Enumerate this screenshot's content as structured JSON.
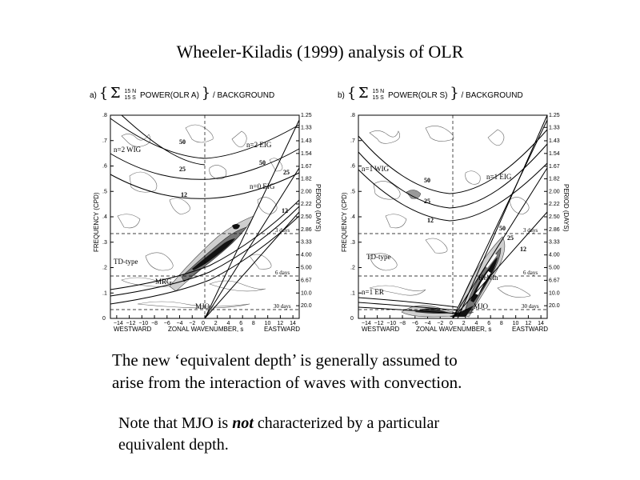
{
  "slide": {
    "title": "Wheeler-Kiladis (1999) analysis of OLR",
    "text1_line1": "The new ‘equivalent depth’ is generally assumed to",
    "text1_line2": "arise from the interaction of waves with convection.",
    "text2_pre": "Note that MJO is ",
    "text2_em": "not",
    "text2_post": " characterized by a particular",
    "text2_line2": "equivalent depth."
  },
  "panels": [
    {
      "id": "a",
      "letter": "a)",
      "sum_top": "15 N",
      "sum_bottom": "15 S",
      "power_label": "POWER(OLR A)",
      "denominator": "/ BACKGROUND",
      "ylabel": "FREQUENCY (CPD)",
      "y2label": "PERIOD (DAYS)",
      "xlabel": "ZONAL WAVENUMBER, s",
      "left_label": "WESTWARD",
      "right_label": "EASTWARD",
      "annotations": [
        "n=2 WIG",
        "n=2 EIG",
        "n=0 EIG",
        "TD-type",
        "MRG",
        "MJO",
        "50",
        "25",
        "12",
        "50",
        "25",
        "12"
      ],
      "day_labels": [
        "3 days",
        "6 days",
        "30 days"
      ]
    },
    {
      "id": "b",
      "letter": "b)",
      "sum_top": "15 N",
      "sum_bottom": "15 S",
      "power_label": "POWER(OLR S)",
      "denominator": "/ BACKGROUND",
      "ylabel": "FREQUENCY (CPD)",
      "y2label": "PERIOD (DAYS)",
      "xlabel": "ZONAL WAVENUMBER, s",
      "left_label": "WESTWARD",
      "right_label": "EASTWARD",
      "annotations": [
        "n=1 WIG",
        "n=1 EIG",
        "TD-type",
        "Kelvin",
        "n=1 ER",
        "MJO",
        "50",
        "25",
        "12",
        "50",
        "25",
        "12"
      ],
      "day_labels": [
        "3 days",
        "6 days",
        "30 days"
      ]
    }
  ],
  "chart_data": [
    {
      "type": "heatmap",
      "panel": "a",
      "xlabel": "ZONAL WAVENUMBER, s",
      "ylabel": "FREQUENCY (CPD)",
      "xlim": [
        -15,
        15
      ],
      "ylim": [
        0,
        0.8
      ],
      "x_ticks": [
        "-14",
        "-12",
        "-10",
        "-8",
        "-6",
        "-4",
        "-2",
        "0",
        "2",
        "4",
        "6",
        "8",
        "10",
        "12",
        "14"
      ],
      "y_ticks": [
        "0",
        ".1",
        ".2",
        ".3",
        ".4",
        ".5",
        ".6",
        ".7",
        ".8"
      ],
      "period_ticks": [
        "1.25",
        "1.33",
        "1.43",
        "1.54",
        "1.67",
        "1.82",
        "2.00",
        "2.22",
        "2.50",
        "2.86",
        "3.33",
        "4.00",
        "5.00",
        "6.67",
        "10.0",
        "20.0"
      ],
      "dashed_period_lines_cpd": [
        0.333,
        0.1667,
        0.0333
      ]
    },
    {
      "type": "heatmap",
      "panel": "b",
      "xlabel": "ZONAL WAVENUMBER, s",
      "ylabel": "FREQUENCY (CPD)",
      "xlim": [
        -15,
        15
      ],
      "ylim": [
        0,
        0.8
      ],
      "x_ticks": [
        "-14",
        "-12",
        "-10",
        "-8",
        "-6",
        "-4",
        "-2",
        "0",
        "2",
        "4",
        "6",
        "8",
        "10",
        "12",
        "14"
      ],
      "y_ticks": [
        "0",
        ".1",
        ".2",
        ".3",
        ".4",
        ".5",
        ".6",
        ".7",
        ".8"
      ],
      "period_ticks": [
        "1.25",
        "1.33",
        "1.43",
        "1.54",
        "1.67",
        "1.82",
        "2.00",
        "2.22",
        "2.50",
        "2.86",
        "3.33",
        "4.00",
        "5.00",
        "6.67",
        "10.0",
        "20.0"
      ],
      "dashed_period_lines_cpd": [
        0.333,
        0.1667,
        0.0333
      ]
    }
  ]
}
